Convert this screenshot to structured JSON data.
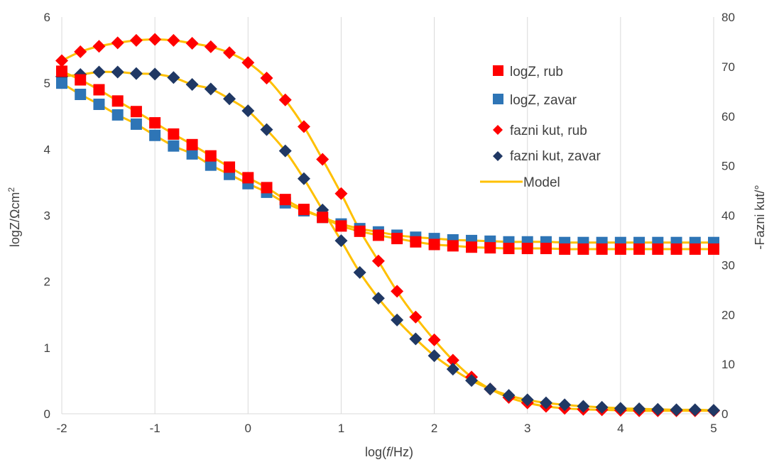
{
  "chart_data": {
    "type": "scatter",
    "title": "",
    "xlabel": {
      "prefix": "log(",
      "italic": "f",
      "suffix": "/Hz)"
    },
    "ylabel_left": {
      "main": "logZ/Ωcm",
      "sup": "2"
    },
    "ylabel_right": "-Fazni kut/°",
    "xlim": [
      -2,
      5
    ],
    "ylim_left": [
      0,
      6
    ],
    "ylim_right": [
      0,
      80
    ],
    "xticks": [
      "-2",
      "-1",
      "0",
      "1",
      "2",
      "3",
      "4",
      "5"
    ],
    "yticks_left": [
      "0",
      "1",
      "2",
      "3",
      "4",
      "5",
      "6"
    ],
    "yticks_right": [
      "0",
      "10",
      "20",
      "30",
      "40",
      "50",
      "60",
      "70",
      "80"
    ],
    "grid": "vertical",
    "legend_position": "right-center",
    "x": [
      -2.0,
      -1.8,
      -1.6,
      -1.4,
      -1.2,
      -1.0,
      -0.8,
      -0.6,
      -0.4,
      -0.2,
      0.0,
      0.2,
      0.4,
      0.6,
      0.8,
      1.0,
      1.2,
      1.4,
      1.6,
      1.8,
      2.0,
      2.2,
      2.4,
      2.6,
      2.8,
      3.0,
      3.2,
      3.4,
      3.6,
      3.8,
      4.0,
      4.2,
      4.4,
      4.6,
      4.8,
      5.0
    ],
    "series": [
      {
        "name": "logZ, rub",
        "axis": "left",
        "marker": "square",
        "color": "#ff0000",
        "values": [
          5.18,
          5.05,
          4.9,
          4.73,
          4.57,
          4.4,
          4.23,
          4.07,
          3.9,
          3.73,
          3.57,
          3.42,
          3.24,
          3.09,
          2.97,
          2.84,
          2.76,
          2.7,
          2.65,
          2.6,
          2.56,
          2.54,
          2.52,
          2.51,
          2.5,
          2.5,
          2.5,
          2.49,
          2.49,
          2.49,
          2.49,
          2.49,
          2.49,
          2.49,
          2.49,
          2.49
        ]
      },
      {
        "name": "logZ, zavar",
        "axis": "left",
        "marker": "square",
        "color": "#2e75b6",
        "values": [
          5.0,
          4.83,
          4.68,
          4.52,
          4.38,
          4.21,
          4.05,
          3.93,
          3.76,
          3.62,
          3.48,
          3.35,
          3.19,
          3.07,
          2.97,
          2.87,
          2.8,
          2.75,
          2.7,
          2.67,
          2.65,
          2.63,
          2.62,
          2.61,
          2.6,
          2.6,
          2.6,
          2.59,
          2.59,
          2.59,
          2.59,
          2.59,
          2.59,
          2.59,
          2.59,
          2.59
        ]
      },
      {
        "name": "fazni kut, rub",
        "axis": "right",
        "marker": "diamond",
        "color": "#ff0000",
        "values": [
          71.2,
          73.0,
          74.1,
          74.8,
          75.3,
          75.5,
          75.3,
          74.7,
          74.0,
          72.8,
          70.8,
          67.7,
          63.3,
          57.9,
          51.3,
          44.4,
          37.0,
          30.8,
          24.7,
          19.5,
          14.9,
          10.8,
          7.4,
          5.0,
          3.3,
          2.2,
          1.5,
          1.1,
          0.9,
          0.8,
          0.7,
          0.6,
          0.6,
          0.6,
          0.6,
          0.6
        ]
      },
      {
        "name": "fazni kut, zavar",
        "axis": "right",
        "marker": "diamond",
        "color": "#203864",
        "values": [
          68.0,
          68.4,
          68.9,
          68.9,
          68.6,
          68.5,
          67.8,
          66.4,
          65.5,
          63.5,
          61.1,
          57.3,
          53.0,
          47.4,
          41.1,
          34.9,
          28.5,
          23.3,
          18.9,
          15.1,
          11.7,
          9.0,
          6.7,
          5.0,
          3.7,
          2.8,
          2.2,
          1.8,
          1.5,
          1.3,
          1.1,
          1.0,
          0.9,
          0.8,
          0.8,
          0.7
        ]
      }
    ],
    "model": {
      "name": "Model",
      "color": "#ffc000"
    }
  }
}
